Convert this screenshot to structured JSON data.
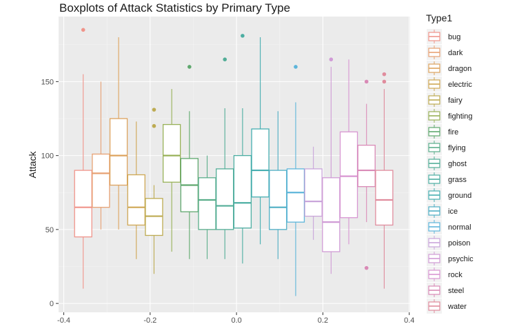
{
  "chart_data": {
    "type": "boxplot",
    "title": "Boxplots of Attack Statistics by Primary Type",
    "xlabel": "",
    "ylabel": "Attack",
    "xlim": [
      -0.4,
      0.4
    ],
    "ylim": [
      0,
      190
    ],
    "x_ticks": [
      -0.4,
      -0.2,
      0.0,
      0.2,
      0.4
    ],
    "x_tick_labels": [
      "-0.4",
      "-0.2",
      "0.0",
      "0.2",
      "0.4"
    ],
    "y_ticks": [
      0,
      50,
      100,
      150
    ],
    "y_tick_labels": [
      "0",
      "50",
      "100",
      "150"
    ],
    "grid": true,
    "legend": {
      "title": "Type1",
      "position": "right"
    },
    "series": [
      {
        "name": "bug",
        "color": "#F0948A",
        "x": -0.355,
        "whisker_low": 10,
        "q1": 45,
        "median": 65,
        "q3": 90,
        "whisker_high": 155,
        "outliers": [
          185
        ]
      },
      {
        "name": "dark",
        "color": "#E7A173",
        "x": -0.314,
        "whisker_low": 50,
        "q1": 65,
        "median": 88,
        "q3": 101,
        "whisker_high": 150,
        "outliers": []
      },
      {
        "name": "dragon",
        "color": "#DDA35E",
        "x": -0.273,
        "whisker_low": 50,
        "q1": 80,
        "median": 100,
        "q3": 125,
        "whisker_high": 180,
        "outliers": []
      },
      {
        "name": "electric",
        "color": "#CFA753",
        "x": -0.232,
        "whisker_low": 30,
        "q1": 53,
        "median": 65,
        "q3": 87,
        "whisker_high": 123,
        "outliers": []
      },
      {
        "name": "fairy",
        "color": "#BDAB52",
        "x": -0.191,
        "whisker_low": 20,
        "q1": 46,
        "median": 59,
        "q3": 71,
        "whisker_high": 80,
        "outliers": [
          120,
          131
        ]
      },
      {
        "name": "fighting",
        "color": "#98B158",
        "x": -0.15,
        "whisker_low": 35,
        "q1": 82,
        "median": 100,
        "q3": 121,
        "whisker_high": 145,
        "outliers": []
      },
      {
        "name": "fire",
        "color": "#5FA86E",
        "x": -0.109,
        "whisker_low": 30,
        "q1": 62,
        "median": 80,
        "q3": 98,
        "whisker_high": 130,
        "outliers": [
          160
        ]
      },
      {
        "name": "flying",
        "color": "#5BAE8B",
        "x": -0.068,
        "whisker_low": 30,
        "q1": 50,
        "median": 70,
        "q3": 85,
        "whisker_high": 100,
        "outliers": []
      },
      {
        "name": "ghost",
        "color": "#52AD97",
        "x": -0.027,
        "whisker_low": 30,
        "q1": 50,
        "median": 66,
        "q3": 91,
        "whisker_high": 132,
        "outliers": [
          165
        ]
      },
      {
        "name": "grass",
        "color": "#4CAEA2",
        "x": 0.014,
        "whisker_low": 27,
        "q1": 51,
        "median": 68,
        "q3": 100,
        "whisker_high": 132,
        "outliers": [
          181
        ]
      },
      {
        "name": "ground",
        "color": "#45AEB1",
        "x": 0.055,
        "whisker_low": 40,
        "q1": 72,
        "median": 90,
        "q3": 118,
        "whisker_high": 180,
        "outliers": []
      },
      {
        "name": "ice",
        "color": "#4EAEC4",
        "x": 0.096,
        "whisker_low": 30,
        "q1": 50,
        "median": 65,
        "q3": 90,
        "whisker_high": 130,
        "outliers": []
      },
      {
        "name": "normal",
        "color": "#5DB5DA",
        "x": 0.137,
        "whisker_low": 5,
        "q1": 55,
        "median": 75,
        "q3": 91,
        "whisker_high": 136,
        "outliers": [
          160
        ]
      },
      {
        "name": "poison",
        "color": "#C9A5DA",
        "x": 0.178,
        "whisker_low": 43,
        "q1": 59,
        "median": 69,
        "q3": 91,
        "whisker_high": 106,
        "outliers": []
      },
      {
        "name": "psychic",
        "color": "#D09BD6",
        "x": 0.219,
        "whisker_low": 20,
        "q1": 35,
        "median": 55,
        "q3": 85,
        "whisker_high": 160,
        "outliers": [
          165
        ]
      },
      {
        "name": "rock",
        "color": "#D896D2",
        "x": 0.26,
        "whisker_low": 40,
        "q1": 58,
        "median": 86,
        "q3": 116,
        "whisker_high": 165,
        "outliers": []
      },
      {
        "name": "steel",
        "color": "#D98AB6",
        "x": 0.301,
        "whisker_low": 55,
        "q1": 79,
        "median": 90,
        "q3": 107,
        "whisker_high": 135,
        "outliers": [
          24,
          150
        ]
      },
      {
        "name": "water",
        "color": "#E08C9D",
        "x": 0.342,
        "whisker_low": 10,
        "q1": 53,
        "median": 70,
        "q3": 90,
        "whisker_high": 145,
        "outliers": [
          150,
          155
        ]
      }
    ]
  }
}
